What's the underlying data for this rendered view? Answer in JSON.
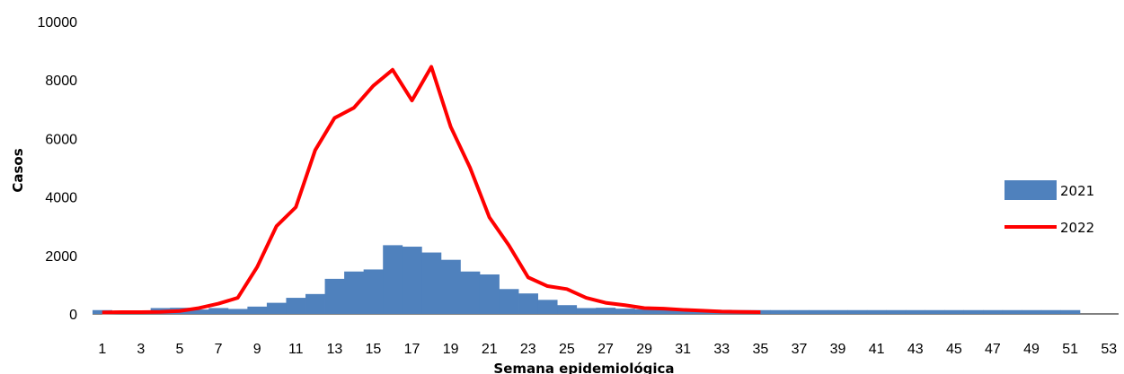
{
  "chart_data": {
    "type": "bar",
    "xlabel": "Semana epidemiológica",
    "ylabel": "Casos",
    "ylim": [
      0,
      10000
    ],
    "yticks": [
      0,
      2000,
      4000,
      6000,
      8000,
      10000
    ],
    "xlim": [
      1,
      53
    ],
    "xticks": [
      "1",
      "3",
      "5",
      "7",
      "9",
      "11",
      "13",
      "15",
      "17",
      "19",
      "21",
      "23",
      "25",
      "27",
      "29",
      "31",
      "33",
      "35",
      "37",
      "39",
      "41",
      "43",
      "45",
      "47",
      "49",
      "51",
      "53"
    ],
    "legend_position": "right",
    "grid": false,
    "series": [
      {
        "name": "2021",
        "type": "bar",
        "color": "#4f81bd",
        "x": [
          1,
          2,
          3,
          4,
          5,
          6,
          7,
          8,
          9,
          10,
          11,
          12,
          13,
          14,
          15,
          16,
          17,
          18,
          19,
          20,
          21,
          22,
          23,
          24,
          25,
          26,
          27,
          28,
          29,
          30,
          31,
          32,
          33,
          34,
          35,
          36,
          37,
          38,
          39,
          40,
          41,
          42,
          43,
          44,
          45,
          46,
          47,
          48,
          49,
          50,
          51
        ],
        "values": [
          130,
          110,
          120,
          200,
          210,
          150,
          200,
          170,
          250,
          380,
          550,
          680,
          1200,
          1450,
          1520,
          2350,
          2300,
          2100,
          1850,
          1450,
          1350,
          850,
          700,
          480,
          300,
          200,
          210,
          180,
          160,
          160,
          140,
          140,
          140,
          130,
          130,
          130,
          130,
          130,
          130,
          130,
          130,
          130,
          130,
          130,
          130,
          130,
          130,
          130,
          130,
          130,
          130
        ]
      },
      {
        "name": "2022",
        "type": "line",
        "color": "#ff0000",
        "x": [
          1,
          2,
          3,
          4,
          5,
          6,
          7,
          8,
          9,
          10,
          11,
          12,
          13,
          14,
          15,
          16,
          17,
          18,
          19,
          20,
          21,
          22,
          23,
          24,
          25,
          26,
          27,
          28,
          29,
          30,
          31,
          32,
          33,
          34,
          35
        ],
        "values": [
          50,
          60,
          60,
          70,
          100,
          200,
          350,
          550,
          1600,
          3000,
          3650,
          5600,
          6700,
          7050,
          7800,
          8350,
          7300,
          8450,
          6400,
          5000,
          3300,
          2350,
          1250,
          950,
          850,
          550,
          380,
          300,
          200,
          180,
          140,
          110,
          80,
          70,
          60
        ]
      }
    ]
  }
}
